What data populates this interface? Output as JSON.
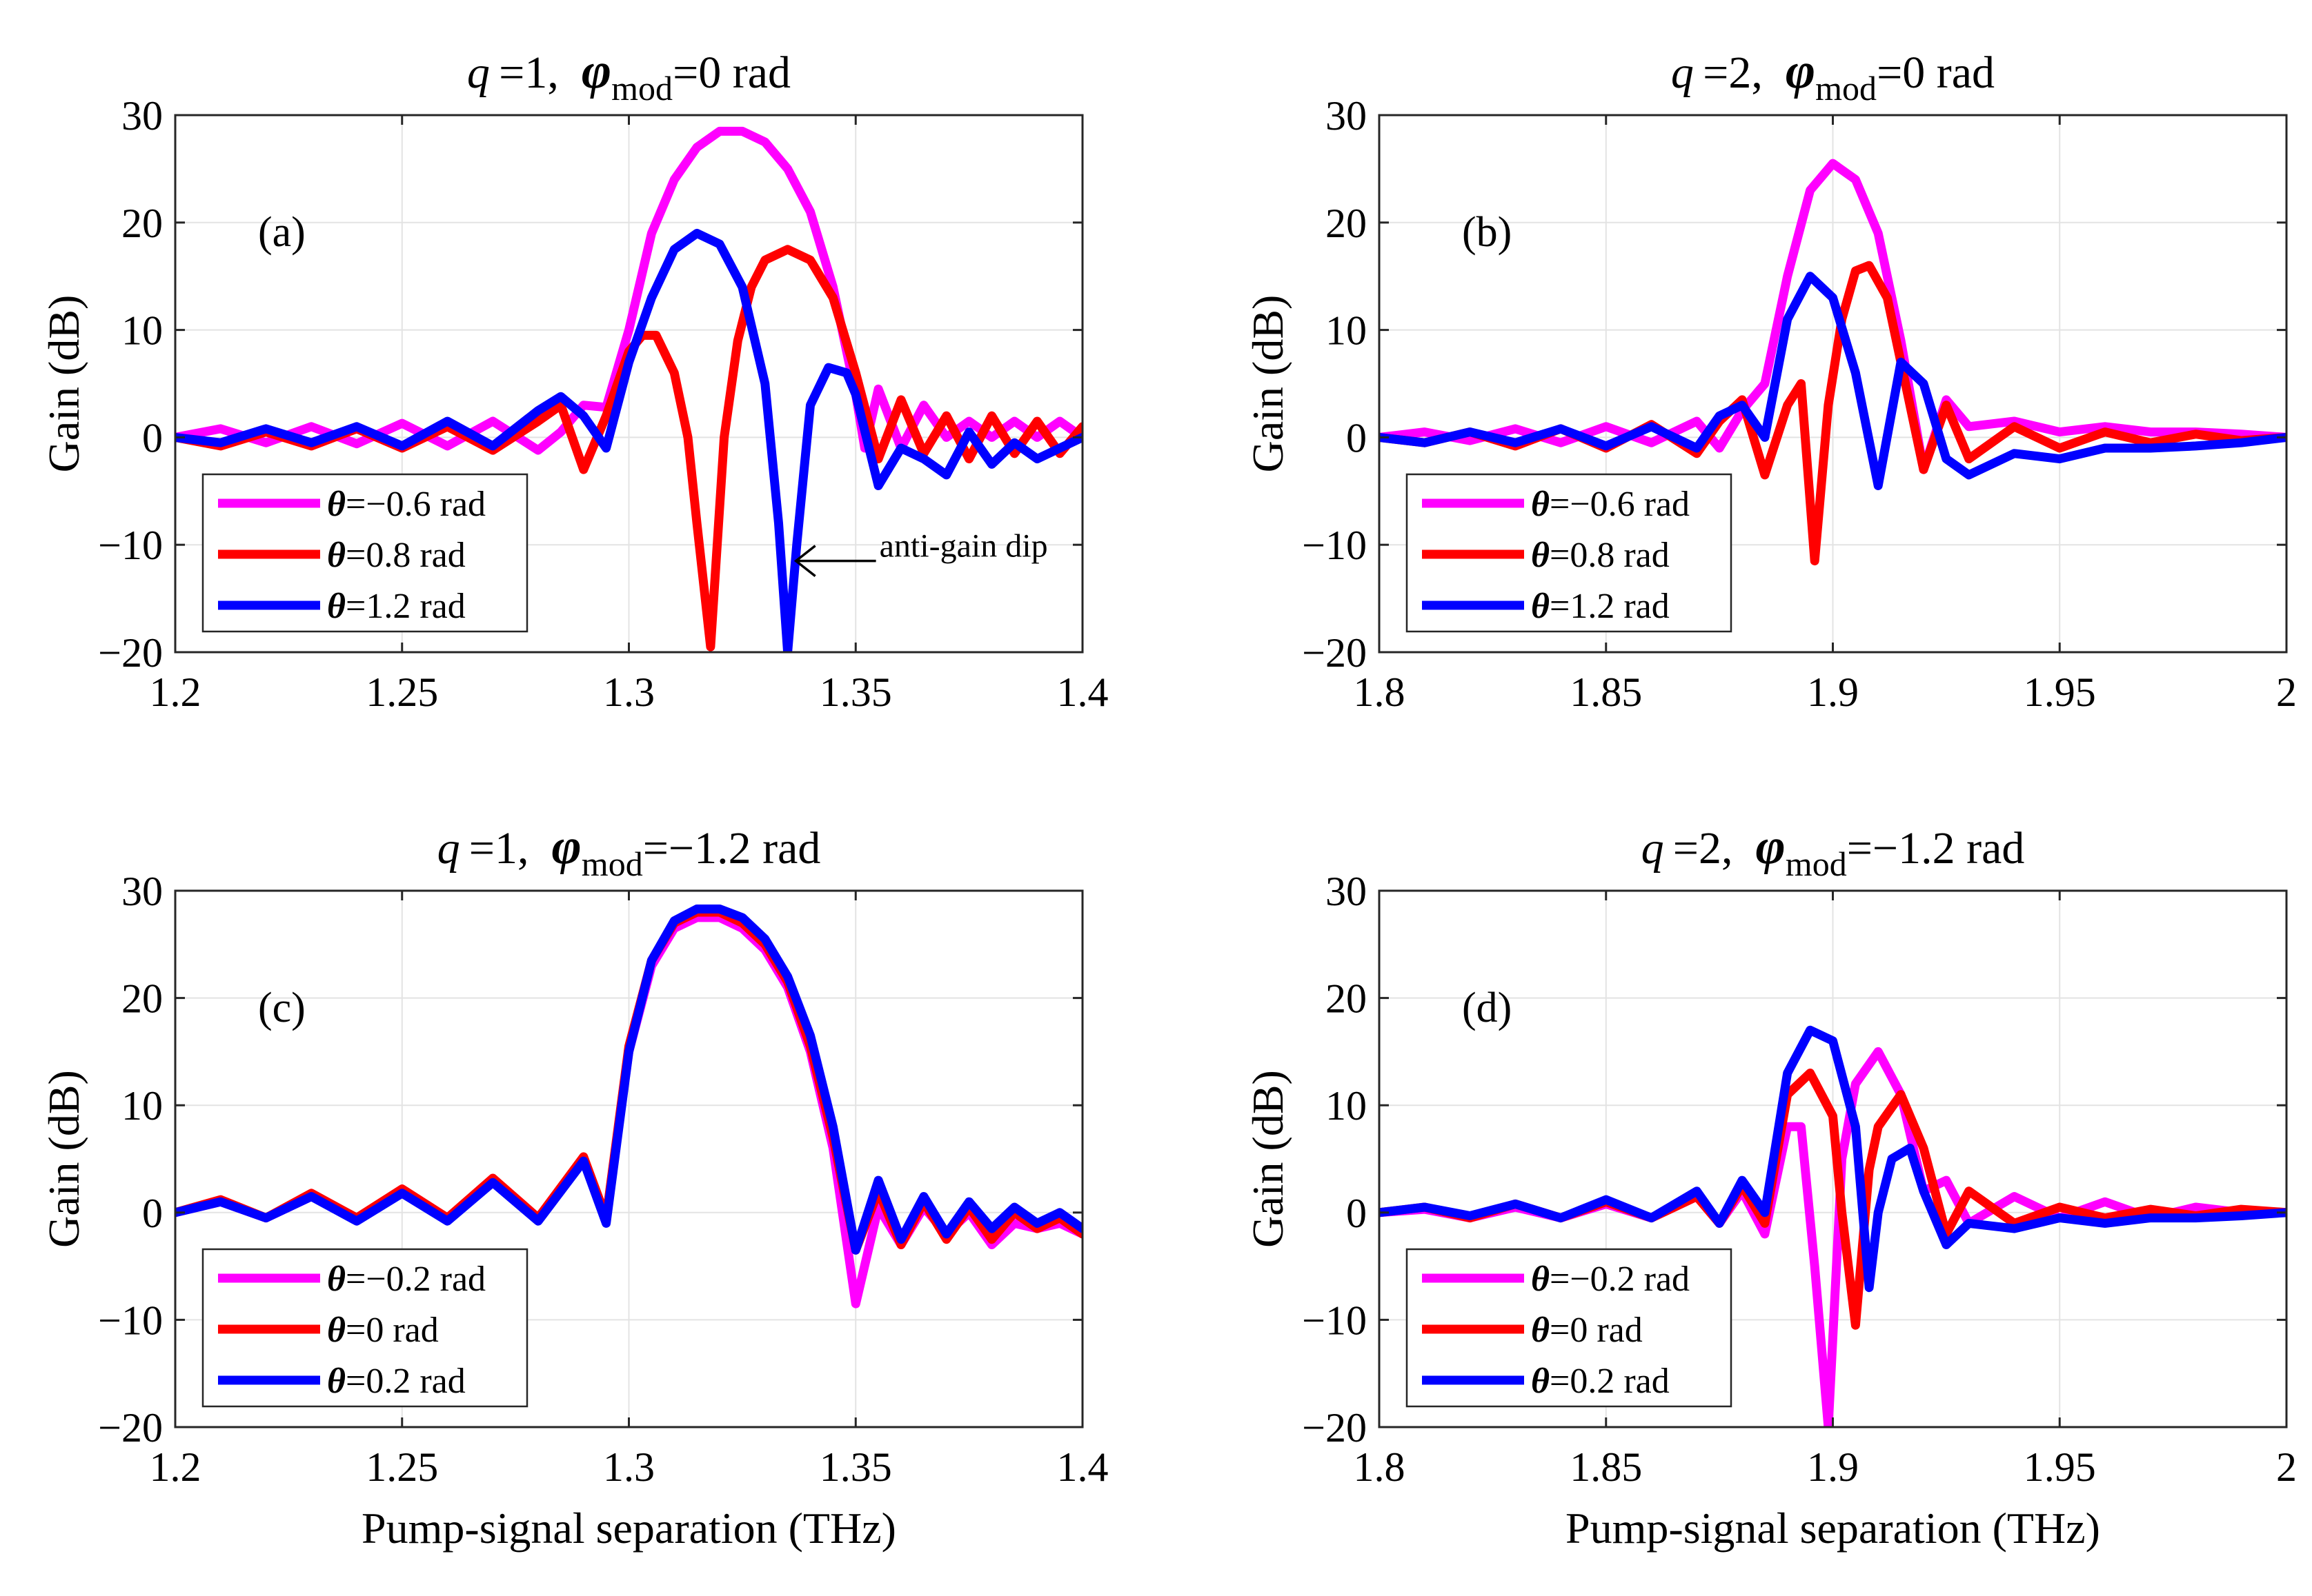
{
  "figure": {
    "common_xlabel": "Pump-signal separation (THz)",
    "common_ylabel": "Gain (dB)",
    "colors": {
      "magenta": "#ff00ff",
      "red": "#ff0000",
      "blue": "#0000ff",
      "grid": "#e3e3e3",
      "axis": "#262626"
    }
  },
  "chart_data": [
    {
      "type": "line",
      "panel_label": "(a)",
      "title": {
        "q_sym": "q",
        "q_val": "=1,",
        "phi_sym": "φ",
        "phi_sub": "mod",
        "phi_val": "=0 rad"
      },
      "xlabel": "",
      "ylabel": "Gain (dB)",
      "xlim": [
        1.2,
        1.4
      ],
      "ylim": [
        -20,
        30
      ],
      "xticks": [
        1.2,
        1.25,
        1.3,
        1.35,
        1.4
      ],
      "xtick_labels": [
        "1.2",
        "1.25",
        "1.3",
        "1.35",
        "1.4"
      ],
      "yticks": [
        -20,
        -10,
        0,
        10,
        20,
        30
      ],
      "ytick_labels": [
        "−20",
        "−10",
        "0",
        "10",
        "20",
        "30"
      ],
      "grid": true,
      "legend_position": "bottom-left",
      "annotation": {
        "text": "anti-gain dip",
        "x": 1.335,
        "y": -11.5
      },
      "series": [
        {
          "name": "θ=−0.6 rad",
          "theta_sym": "θ",
          "theta_val": "=−0.6 rad",
          "color": "#ff00ff",
          "x": [
            1.2,
            1.21,
            1.22,
            1.23,
            1.24,
            1.25,
            1.26,
            1.27,
            1.28,
            1.285,
            1.29,
            1.295,
            1.3,
            1.305,
            1.31,
            1.315,
            1.32,
            1.325,
            1.33,
            1.335,
            1.34,
            1.345,
            1.35,
            1.352,
            1.355,
            1.36,
            1.365,
            1.37,
            1.375,
            1.38,
            1.385,
            1.39,
            1.395,
            1.4
          ],
          "y": [
            0,
            0.8,
            -0.5,
            1,
            -0.6,
            1.3,
            -0.8,
            1.5,
            -1.2,
            0.5,
            3,
            2.8,
            10,
            19,
            24,
            27,
            28.5,
            28.5,
            27.5,
            25,
            21,
            14,
            4,
            -1,
            4.5,
            -1,
            3,
            0,
            1.5,
            0,
            1.5,
            0,
            1.5,
            0
          ]
        },
        {
          "name": "θ=0.8 rad",
          "theta_sym": "θ",
          "theta_val": "=0.8 rad",
          "color": "#ff0000",
          "x": [
            1.2,
            1.21,
            1.22,
            1.23,
            1.24,
            1.25,
            1.26,
            1.27,
            1.28,
            1.285,
            1.29,
            1.295,
            1.3,
            1.303,
            1.306,
            1.31,
            1.313,
            1.315,
            1.318,
            1.321,
            1.324,
            1.327,
            1.33,
            1.335,
            1.34,
            1.345,
            1.35,
            1.355,
            1.36,
            1.365,
            1.37,
            1.375,
            1.38,
            1.385,
            1.39,
            1.395,
            1.4
          ],
          "y": [
            0,
            -0.8,
            0.5,
            -0.8,
            0.8,
            -1,
            1,
            -1.2,
            1.5,
            3,
            -3,
            2,
            8,
            9.5,
            9.5,
            6,
            0,
            -8,
            -19.5,
            0,
            9,
            14,
            16.5,
            17.5,
            16.5,
            13,
            6,
            -2,
            3.5,
            -1.5,
            2,
            -2,
            2,
            -1.5,
            1.5,
            -1.5,
            1
          ]
        },
        {
          "name": "θ=1.2 rad",
          "theta_sym": "θ",
          "theta_val": "=1.2 rad",
          "color": "#0000ff",
          "x": [
            1.2,
            1.21,
            1.22,
            1.23,
            1.24,
            1.25,
            1.26,
            1.27,
            1.28,
            1.285,
            1.29,
            1.295,
            1.3,
            1.305,
            1.31,
            1.315,
            1.32,
            1.325,
            1.33,
            1.333,
            1.335,
            1.337,
            1.34,
            1.344,
            1.348,
            1.35,
            1.355,
            1.36,
            1.365,
            1.37,
            1.375,
            1.38,
            1.385,
            1.39,
            1.395,
            1.4
          ],
          "y": [
            0,
            -0.5,
            0.8,
            -0.5,
            1,
            -0.8,
            1.5,
            -0.8,
            2.5,
            3.8,
            2,
            -1,
            7,
            13,
            17.5,
            19,
            18,
            14,
            5,
            -8,
            -20,
            -10,
            3,
            6.5,
            6,
            4,
            -4.5,
            -1,
            -2,
            -3.5,
            0.5,
            -2.5,
            -0.5,
            -2,
            -1,
            0
          ]
        }
      ]
    },
    {
      "type": "line",
      "panel_label": "(b)",
      "title": {
        "q_sym": "q",
        "q_val": "=2,",
        "phi_sym": "φ",
        "phi_sub": "mod",
        "phi_val": "=0 rad"
      },
      "xlabel": "",
      "ylabel": "Gain (dB)",
      "xlim": [
        1.8,
        2.0
      ],
      "ylim": [
        -20,
        30
      ],
      "xticks": [
        1.8,
        1.85,
        1.9,
        1.95,
        2.0
      ],
      "xtick_labels": [
        "1.8",
        "1.85",
        "1.9",
        "1.95",
        "2"
      ],
      "yticks": [
        -20,
        -10,
        0,
        10,
        20,
        30
      ],
      "ytick_labels": [
        "−20",
        "−10",
        "0",
        "10",
        "20",
        "30"
      ],
      "grid": true,
      "legend_position": "bottom-left",
      "series": [
        {
          "name": "θ=−0.6 rad",
          "theta_sym": "θ",
          "theta_val": "=−0.6 rad",
          "color": "#ff00ff",
          "x": [
            1.8,
            1.81,
            1.82,
            1.83,
            1.84,
            1.85,
            1.86,
            1.87,
            1.875,
            1.88,
            1.885,
            1.89,
            1.895,
            1.9,
            1.905,
            1.91,
            1.915,
            1.92,
            1.925,
            1.93,
            1.94,
            1.95,
            1.96,
            1.97,
            1.98,
            1.99,
            2.0
          ],
          "y": [
            0,
            0.5,
            -0.3,
            0.8,
            -0.5,
            1,
            -0.5,
            1.5,
            -1,
            2.5,
            5,
            15,
            23,
            25.5,
            24,
            19,
            9,
            -3,
            3.5,
            1,
            1.5,
            0.5,
            1,
            0.5,
            0.5,
            0.3,
            0
          ]
        },
        {
          "name": "θ=0.8 rad",
          "theta_sym": "θ",
          "theta_val": "=0.8 rad",
          "color": "#ff0000",
          "x": [
            1.8,
            1.81,
            1.82,
            1.83,
            1.84,
            1.85,
            1.86,
            1.87,
            1.875,
            1.88,
            1.885,
            1.89,
            1.893,
            1.896,
            1.899,
            1.902,
            1.905,
            1.908,
            1.912,
            1.916,
            1.92,
            1.925,
            1.93,
            1.94,
            1.95,
            1.96,
            1.97,
            1.98,
            1.99,
            2.0
          ],
          "y": [
            0,
            -0.5,
            0.5,
            -0.8,
            0.8,
            -1,
            1.2,
            -1.5,
            1.5,
            3.5,
            -3.5,
            3,
            5,
            -11.5,
            3,
            11,
            15.5,
            16,
            13,
            5,
            -3,
            3,
            -2,
            1,
            -1,
            0.5,
            -0.5,
            0.3,
            -0.3,
            0
          ]
        },
        {
          "name": "θ=1.2 rad",
          "theta_sym": "θ",
          "theta_val": "=1.2 rad",
          "color": "#0000ff",
          "x": [
            1.8,
            1.81,
            1.82,
            1.83,
            1.84,
            1.85,
            1.86,
            1.87,
            1.875,
            1.88,
            1.885,
            1.89,
            1.895,
            1.9,
            1.905,
            1.91,
            1.915,
            1.92,
            1.925,
            1.93,
            1.94,
            1.95,
            1.96,
            1.97,
            1.98,
            1.99,
            2.0
          ],
          "y": [
            0,
            -0.5,
            0.5,
            -0.5,
            0.8,
            -0.8,
            1,
            -1,
            2,
            3,
            0,
            11,
            15,
            13,
            6,
            -4.5,
            7,
            5,
            -2,
            -3.5,
            -1.5,
            -2,
            -1,
            -1,
            -0.8,
            -0.5,
            0
          ]
        }
      ]
    },
    {
      "type": "line",
      "panel_label": "(c)",
      "title": {
        "q_sym": "q",
        "q_val": "=1,",
        "phi_sym": "φ",
        "phi_sub": "mod",
        "phi_val": "=−1.2 rad"
      },
      "xlabel": "Pump-signal separation (THz)",
      "ylabel": "Gain (dB)",
      "xlim": [
        1.2,
        1.4
      ],
      "ylim": [
        -20,
        30
      ],
      "xticks": [
        1.2,
        1.25,
        1.3,
        1.35,
        1.4
      ],
      "xtick_labels": [
        "1.2",
        "1.25",
        "1.3",
        "1.35",
        "1.4"
      ],
      "yticks": [
        -20,
        -10,
        0,
        10,
        20,
        30
      ],
      "ytick_labels": [
        "−20",
        "−10",
        "0",
        "10",
        "20",
        "30"
      ],
      "grid": true,
      "legend_position": "bottom-left",
      "series": [
        {
          "name": "θ=−0.2 rad",
          "theta_sym": "θ",
          "theta_val": "=−0.2 rad",
          "color": "#ff00ff",
          "x": [
            1.2,
            1.21,
            1.22,
            1.23,
            1.24,
            1.25,
            1.26,
            1.27,
            1.28,
            1.29,
            1.295,
            1.3,
            1.305,
            1.31,
            1.315,
            1.32,
            1.325,
            1.33,
            1.335,
            1.34,
            1.345,
            1.35,
            1.355,
            1.36,
            1.365,
            1.37,
            1.375,
            1.38,
            1.385,
            1.39,
            1.395,
            1.4
          ],
          "y": [
            0,
            1,
            -0.5,
            1.5,
            -0.5,
            2,
            -0.5,
            3,
            -0.5,
            5,
            -0.5,
            15,
            23,
            26.5,
            27.5,
            27.5,
            26.5,
            24.5,
            21,
            15,
            6,
            -8.5,
            0.5,
            -3,
            0.5,
            -2,
            0,
            -3,
            -1,
            -1.5,
            -1,
            -2
          ]
        },
        {
          "name": "θ=0 rad",
          "theta_sym": "θ",
          "theta_val": "=0 rad",
          "color": "#ff0000",
          "x": [
            1.2,
            1.21,
            1.22,
            1.23,
            1.24,
            1.25,
            1.26,
            1.27,
            1.28,
            1.29,
            1.295,
            1.3,
            1.305,
            1.31,
            1.315,
            1.32,
            1.325,
            1.33,
            1.335,
            1.34,
            1.345,
            1.35,
            1.355,
            1.36,
            1.365,
            1.37,
            1.375,
            1.38,
            1.385,
            1.39,
            1.395,
            1.4
          ],
          "y": [
            0,
            1.2,
            -0.5,
            1.8,
            -0.5,
            2.2,
            -0.5,
            3.2,
            -0.5,
            5.2,
            -0.5,
            15.5,
            23.5,
            27,
            28,
            28,
            27,
            25,
            21.5,
            15.5,
            7,
            -3.5,
            2,
            -3,
            1,
            -2.5,
            0.5,
            -2.5,
            0,
            -1.5,
            -0.5,
            -2
          ]
        },
        {
          "name": "θ=0.2 rad",
          "theta_sym": "θ",
          "theta_val": "=0.2 rad",
          "color": "#0000ff",
          "x": [
            1.2,
            1.21,
            1.22,
            1.23,
            1.24,
            1.25,
            1.26,
            1.27,
            1.28,
            1.29,
            1.295,
            1.3,
            1.305,
            1.31,
            1.315,
            1.32,
            1.325,
            1.33,
            1.335,
            1.34,
            1.345,
            1.35,
            1.355,
            1.36,
            1.365,
            1.37,
            1.375,
            1.38,
            1.385,
            1.39,
            1.395,
            1.4
          ],
          "y": [
            0,
            1,
            -0.5,
            1.5,
            -0.8,
            1.8,
            -0.8,
            2.8,
            -0.8,
            4.8,
            -1,
            15,
            23.5,
            27.2,
            28.3,
            28.3,
            27.5,
            25.5,
            22,
            16.5,
            8,
            -3.5,
            3,
            -2.5,
            1.5,
            -2,
            1,
            -1.5,
            0.5,
            -1,
            0,
            -1.5
          ]
        }
      ]
    },
    {
      "type": "line",
      "panel_label": "(d)",
      "title": {
        "q_sym": "q",
        "q_val": "=2,",
        "phi_sym": "φ",
        "phi_sub": "mod",
        "phi_val": "=−1.2 rad"
      },
      "xlabel": "Pump-signal separation (THz)",
      "ylabel": "Gain (dB)",
      "xlim": [
        1.8,
        2.0
      ],
      "ylim": [
        -20,
        30
      ],
      "xticks": [
        1.8,
        1.85,
        1.9,
        1.95,
        2.0
      ],
      "xtick_labels": [
        "1.8",
        "1.85",
        "1.9",
        "1.95",
        "2"
      ],
      "yticks": [
        -20,
        -10,
        0,
        10,
        20,
        30
      ],
      "ytick_labels": [
        "−20",
        "−10",
        "0",
        "10",
        "20",
        "30"
      ],
      "grid": true,
      "legend_position": "bottom-left",
      "series": [
        {
          "name": "θ=−0.2 rad",
          "theta_sym": "θ",
          "theta_val": "=−0.2 rad",
          "color": "#ff00ff",
          "x": [
            1.8,
            1.81,
            1.82,
            1.83,
            1.84,
            1.85,
            1.86,
            1.87,
            1.875,
            1.88,
            1.885,
            1.89,
            1.893,
            1.896,
            1.899,
            1.902,
            1.905,
            1.91,
            1.915,
            1.92,
            1.925,
            1.93,
            1.94,
            1.95,
            1.96,
            1.97,
            1.98,
            1.99,
            2.0
          ],
          "y": [
            0,
            0.3,
            -0.5,
            0.5,
            -0.5,
            0.8,
            -0.5,
            1.5,
            -1,
            2,
            -2,
            8,
            8,
            -5,
            -20,
            5,
            12,
            15,
            11,
            2,
            3,
            -1,
            1.5,
            -0.5,
            1,
            -0.5,
            0.5,
            0,
            0
          ]
        },
        {
          "name": "θ=0 rad",
          "theta_sym": "θ",
          "theta_val": "=0 rad",
          "color": "#ff0000",
          "x": [
            1.8,
            1.81,
            1.82,
            1.83,
            1.84,
            1.85,
            1.86,
            1.87,
            1.875,
            1.88,
            1.885,
            1.89,
            1.895,
            1.9,
            1.902,
            1.905,
            1.908,
            1.91,
            1.915,
            1.92,
            1.925,
            1.93,
            1.94,
            1.95,
            1.96,
            1.97,
            1.98,
            1.99,
            2.0
          ],
          "y": [
            0,
            0.5,
            -0.5,
            0.8,
            -0.5,
            1,
            -0.5,
            1.5,
            -1,
            2.5,
            -1,
            11,
            13,
            9,
            0,
            -10.5,
            4,
            8,
            11,
            6,
            -2,
            2,
            -1,
            0.5,
            -0.5,
            0.3,
            -0.3,
            0.3,
            0
          ]
        },
        {
          "name": "θ=0.2 rad",
          "theta_sym": "θ",
          "theta_val": "=0.2 rad",
          "color": "#0000ff",
          "x": [
            1.8,
            1.81,
            1.82,
            1.83,
            1.84,
            1.85,
            1.86,
            1.87,
            1.875,
            1.88,
            1.885,
            1.89,
            1.895,
            1.9,
            1.905,
            1.908,
            1.91,
            1.913,
            1.917,
            1.92,
            1.925,
            1.93,
            1.94,
            1.95,
            1.96,
            1.97,
            1.98,
            1.99,
            2.0
          ],
          "y": [
            0,
            0.5,
            -0.3,
            0.8,
            -0.5,
            1.2,
            -0.5,
            2,
            -1,
            3,
            0,
            13,
            17,
            16,
            8,
            -7,
            0,
            5,
            6,
            2,
            -3,
            -1,
            -1.5,
            -0.5,
            -1,
            -0.5,
            -0.5,
            -0.3,
            0
          ]
        }
      ]
    }
  ]
}
